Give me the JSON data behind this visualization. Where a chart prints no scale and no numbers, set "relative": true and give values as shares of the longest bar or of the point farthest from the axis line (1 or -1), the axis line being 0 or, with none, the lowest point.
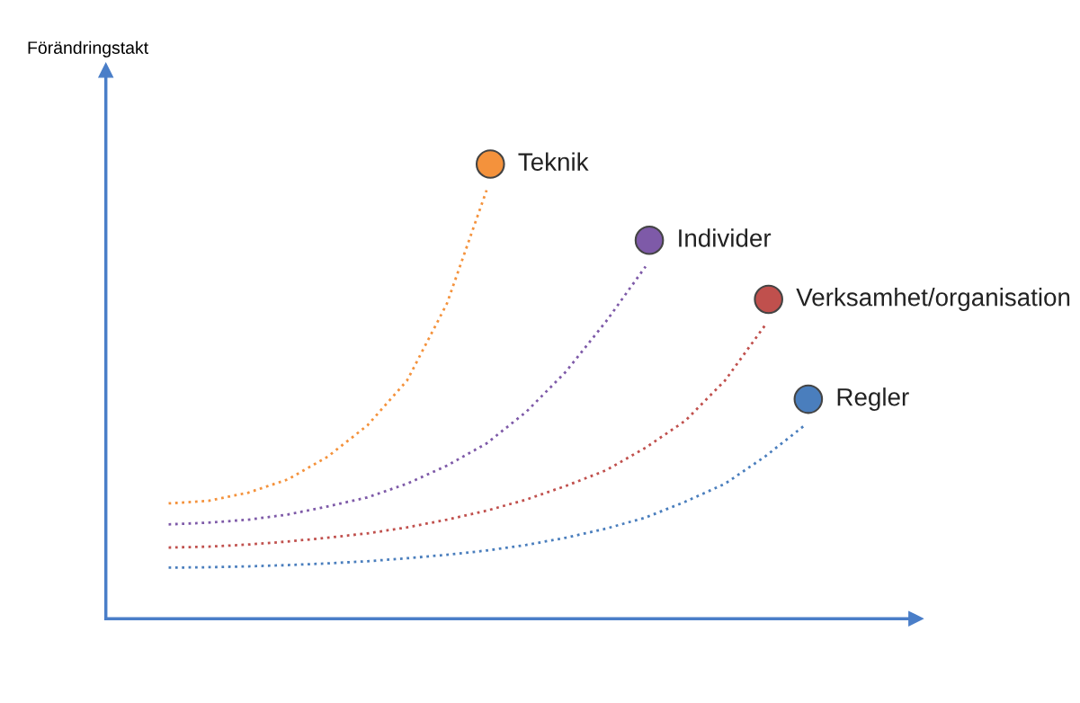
{
  "chart_data": {
    "type": "line",
    "relative": true,
    "annotations": [
      "Förändringstakt"
    ],
    "categories": [
      null,
      null,
      null,
      null,
      null,
      null,
      null,
      null,
      null,
      null,
      null,
      null,
      null,
      null,
      null,
      null,
      null
    ],
    "series": [
      {
        "name": "Teknik",
        "color": "#f4923c",
        "values": [
          0.269,
          0.275,
          0.294,
          0.325,
          0.378,
          0.451,
          0.556,
          0.735,
          1.0,
          null,
          null,
          null,
          null,
          null,
          null,
          null,
          null
        ]
      },
      {
        "name": "Individer",
        "color": "#7e5aa8",
        "values": [
          0.22,
          0.224,
          0.231,
          0.243,
          0.262,
          0.283,
          0.315,
          0.357,
          0.409,
          0.483,
          0.577,
          0.693,
          0.822,
          null,
          null,
          null,
          null
        ]
      },
      {
        "name": "Verksamhet/organisation",
        "color": "#c0504d",
        "values": [
          0.166,
          0.168,
          0.173,
          0.18,
          0.189,
          0.199,
          0.213,
          0.231,
          0.252,
          0.278,
          0.31,
          0.346,
          0.399,
          0.462,
          0.556,
          0.684,
          null
        ]
      },
      {
        "name": "Regler",
        "color": "#4a7ebd",
        "values": [
          0.119,
          0.12,
          0.122,
          0.125,
          0.129,
          0.134,
          0.141,
          0.149,
          0.159,
          0.172,
          0.189,
          0.21,
          0.236,
          0.273,
          0.315,
          0.378,
          0.451
        ]
      }
    ],
    "line_style": "dotted",
    "legend": "right",
    "grid": false
  }
}
